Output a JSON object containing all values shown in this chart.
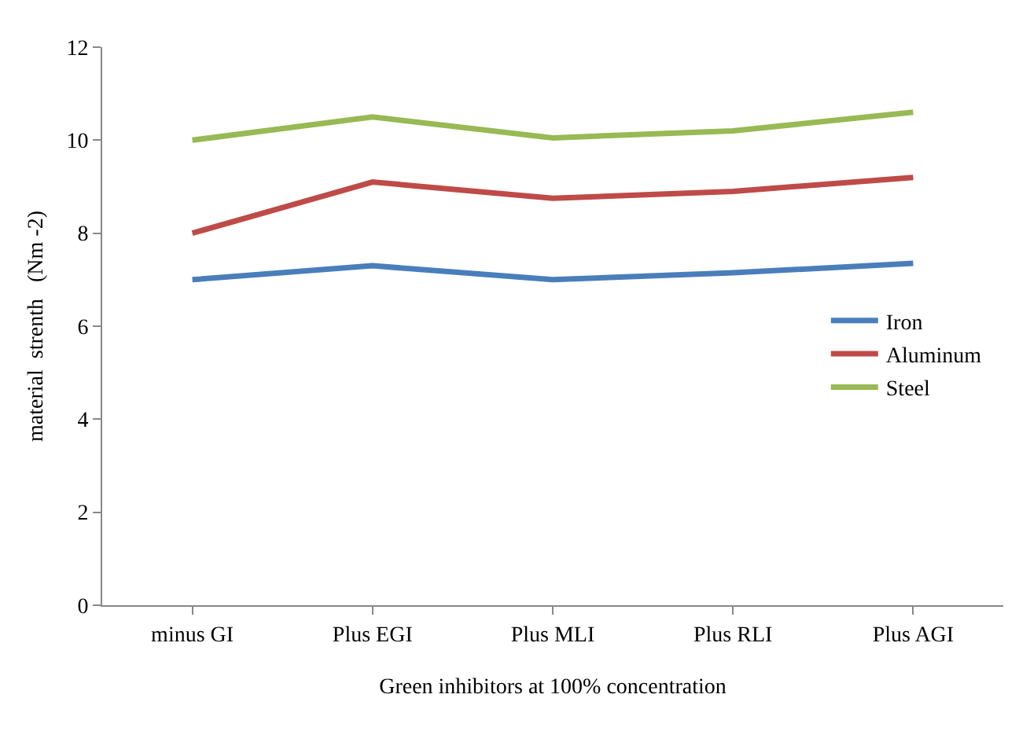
{
  "chart_data": {
    "type": "line",
    "xlabel": "Green inhibitors at 100% concentration",
    "ylabel": "material  strenth   (Nm -2)",
    "categories": [
      "minus GI",
      "Plus EGI",
      "Plus MLI",
      "Plus RLI",
      "Plus AGI"
    ],
    "series": [
      {
        "name": "Iron",
        "color": "#4a7ebb",
        "values": [
          7.0,
          7.3,
          7.0,
          7.15,
          7.35
        ]
      },
      {
        "name": "Aluminum",
        "color": "#be4b48",
        "values": [
          8.0,
          9.1,
          8.75,
          8.9,
          9.2
        ]
      },
      {
        "name": "Steel",
        "color": "#98b954",
        "values": [
          10.0,
          10.5,
          10.05,
          10.2,
          10.6
        ]
      }
    ],
    "ylim": [
      0,
      12
    ],
    "yticks": [
      0,
      2,
      4,
      6,
      8,
      10,
      12
    ],
    "grid": false,
    "legend": "right",
    "marker": "none",
    "line_style": "solid"
  }
}
